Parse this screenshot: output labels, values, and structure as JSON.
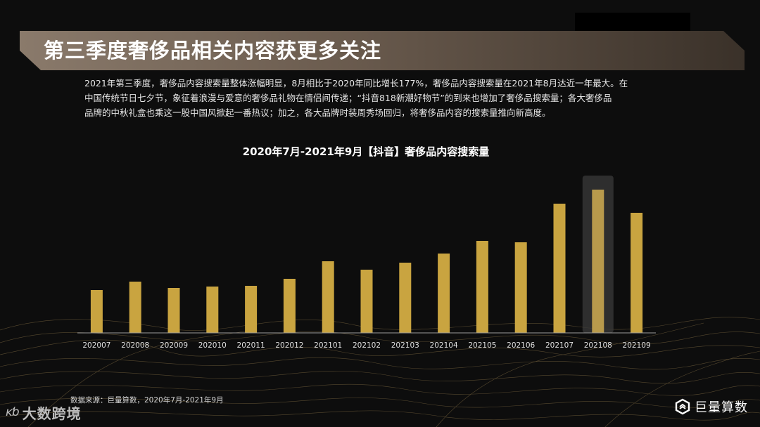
{
  "title": "第三季度奢侈品相关内容获更多关注",
  "description": [
    "2021年第三季度，奢侈品内容搜索量整体涨幅明显，8月相比于2020年同比增长177%，奢侈品内容搜索量在2021年8月达近一年最大。在",
    "中国传统节日七夕节，象征着浪漫与爱意的奢侈品礼物在情侣间传递；“抖音818新潮好物节”的到来也增加了奢侈品搜索量；各大奢侈品",
    "品牌的中秋礼盒也乘这一股中国风掀起一番热议；加之，各大品牌时装周秀场回归，将奢侈品内容的搜索量推向新高度。"
  ],
  "chart_data": {
    "type": "bar",
    "title": "2020年7月-2021年9月【抖音】奢侈品内容搜索量",
    "categories": [
      "202007",
      "202008",
      "202009",
      "202010",
      "202011",
      "202012",
      "202101",
      "202102",
      "202103",
      "202104",
      "202105",
      "202106",
      "202107",
      "202108",
      "202109"
    ],
    "values": [
      61,
      73,
      64,
      66,
      67,
      77,
      102,
      90,
      100,
      113,
      131,
      129,
      184,
      204,
      171
    ],
    "highlight_index": 13,
    "bar_color": "#c9a440",
    "highlight_color": "#b89a4c",
    "ylim": [
      0,
      230
    ],
    "axis_visible": false,
    "grid": false
  },
  "source": "数据来源：巨量算数，2020年7月-2021年9月",
  "logo_left": {
    "mark": "ĸƅ",
    "name": "大数跨境"
  },
  "logo_right": {
    "name": "巨量算数"
  },
  "colors": {
    "background": "#0d0d0d",
    "title_band": "#7a6a5c",
    "accent": "#c9a440"
  }
}
